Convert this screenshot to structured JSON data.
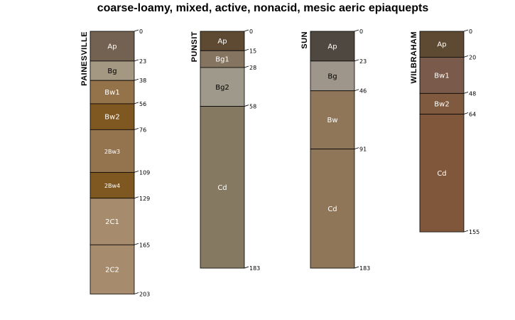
{
  "chart_data": {
    "type": "soil-profile-sketch",
    "title": "coarse-loamy, mixed, active, nonacid, mesic aeric epiaquepts",
    "depth_units": "cm",
    "depth_range": [
      0,
      203
    ],
    "profiles": [
      {
        "name": "PAINESVILLE",
        "horizons": [
          {
            "name": "Ap",
            "top": 0,
            "bottom": 23,
            "color": "#736151"
          },
          {
            "name": "Bg",
            "top": 23,
            "bottom": 38,
            "color": "#A59883"
          },
          {
            "name": "Bw1",
            "top": 38,
            "bottom": 56,
            "color": "#94724A"
          },
          {
            "name": "Bw2",
            "top": 56,
            "bottom": 76,
            "color": "#7F5720"
          },
          {
            "name": "2Bw3",
            "top": 76,
            "bottom": 109,
            "color": "#94744F"
          },
          {
            "name": "2Bw4",
            "top": 109,
            "bottom": 129,
            "color": "#7F5720"
          },
          {
            "name": "2C1",
            "top": 129,
            "bottom": 165,
            "color": "#A68C6C"
          },
          {
            "name": "2C2",
            "top": 165,
            "bottom": 203,
            "color": "#A68C6C"
          }
        ],
        "depth_labels": [
          "0",
          "23",
          "38",
          "56",
          "76",
          "109",
          "129",
          "165",
          "203"
        ]
      },
      {
        "name": "PUNSIT",
        "horizons": [
          {
            "name": "Ap",
            "top": 0,
            "bottom": 15,
            "color": "#5E4932"
          },
          {
            "name": "Bg1",
            "top": 15,
            "bottom": 28,
            "color": "#857560"
          },
          {
            "name": "Bg2",
            "top": 28,
            "bottom": 58,
            "color": "#9E998A"
          },
          {
            "name": "Cd",
            "top": 58,
            "bottom": 183,
            "color": "#857A61"
          }
        ],
        "depth_labels": [
          "0",
          "15",
          "28",
          "58",
          "183"
        ]
      },
      {
        "name": "SUN",
        "horizons": [
          {
            "name": "Ap",
            "top": 0,
            "bottom": 23,
            "color": "#4F4840"
          },
          {
            "name": "Bg",
            "top": 23,
            "bottom": 46,
            "color": "#9E968A"
          },
          {
            "name": "Bw",
            "top": 46,
            "bottom": 91,
            "color": "#8F7659"
          },
          {
            "name": "Cd",
            "top": 91,
            "bottom": 183,
            "color": "#8F7659"
          }
        ],
        "depth_labels": [
          "0",
          "23",
          "46",
          "91",
          "183"
        ]
      },
      {
        "name": "WILBRAHAM",
        "horizons": [
          {
            "name": "Ap",
            "top": 0,
            "bottom": 20,
            "color": "#5E4932"
          },
          {
            "name": "Bw1",
            "top": 20,
            "bottom": 48,
            "color": "#7A5A4A"
          },
          {
            "name": "Bw2",
            "top": 48,
            "bottom": 64,
            "color": "#7F5A3F"
          },
          {
            "name": "Cd",
            "top": 64,
            "bottom": 155,
            "color": "#81573C"
          }
        ],
        "depth_labels": [
          "0",
          "20",
          "48",
          "64",
          "155"
        ]
      }
    ]
  }
}
